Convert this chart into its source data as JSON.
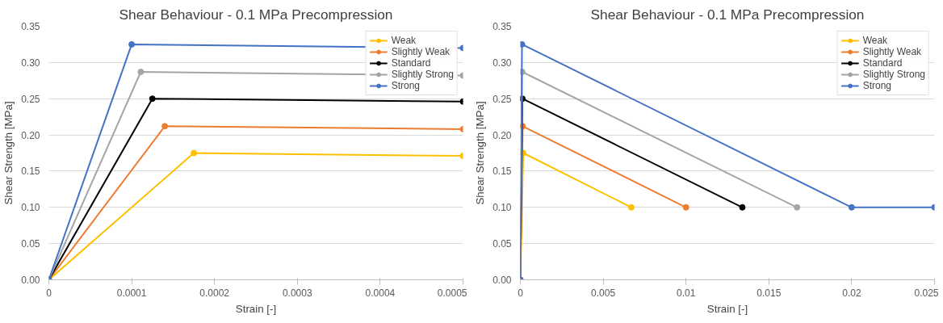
{
  "chart_data": [
    {
      "type": "line",
      "title": "Shear Behaviour - 0.1 MPa Precompression",
      "xlabel": "Strain [-]",
      "ylabel": "Shear Strength [MPa]",
      "xlim": [
        0,
        0.0005
      ],
      "ylim": [
        0,
        0.35
      ],
      "xticks": [
        0,
        0.0001,
        0.0002,
        0.0003,
        0.0004,
        0.0005
      ],
      "yticks": [
        {
          "value": 0,
          "label": "0.00"
        },
        {
          "value": 0.05,
          "label": "0.05"
        },
        {
          "value": 0.1,
          "label": "0.10"
        },
        {
          "value": 0.15,
          "label": "0.15"
        },
        {
          "value": 0.2,
          "label": "0.20"
        },
        {
          "value": 0.25,
          "label": "0.25"
        },
        {
          "value": 0.3,
          "label": "0.30"
        },
        {
          "value": 0.35,
          "label": "0.35"
        }
      ],
      "grid": "y",
      "legend": "top right",
      "marker": "circle",
      "series": [
        {
          "name": "Weak",
          "color": "#ffc000",
          "x": [
            0,
            0.000175,
            0.0005
          ],
          "values": [
            0,
            0.175,
            0.171
          ]
        },
        {
          "name": "Slightly Weak",
          "color": "#ed7d31",
          "x": [
            0,
            0.00014,
            0.0005
          ],
          "values": [
            0,
            0.212,
            0.208
          ]
        },
        {
          "name": "Standard",
          "color": "#000000",
          "x": [
            0,
            0.000125,
            0.0005
          ],
          "values": [
            0,
            0.25,
            0.246
          ]
        },
        {
          "name": "Slightly Strong",
          "color": "#a5a5a5",
          "x": [
            0,
            0.000111,
            0.0005
          ],
          "values": [
            0,
            0.287,
            0.282
          ]
        },
        {
          "name": "Strong",
          "color": "#4472c4",
          "x": [
            0,
            0.0001,
            0.0005
          ],
          "values": [
            0,
            0.325,
            0.32
          ]
        }
      ]
    },
    {
      "type": "line",
      "title": "Shear Behaviour - 0.1 MPa Precompression",
      "xlabel": "Strain [-]",
      "ylabel": "Shear Strength [MPa]",
      "xlim": [
        0,
        0.025
      ],
      "ylim": [
        0,
        0.35
      ],
      "xticks": [
        0,
        0.005,
        0.01,
        0.015,
        0.02,
        0.025
      ],
      "yticks": [
        {
          "value": 0,
          "label": "0.00"
        },
        {
          "value": 0.05,
          "label": "0.05"
        },
        {
          "value": 0.1,
          "label": "0.10"
        },
        {
          "value": 0.15,
          "label": "0.15"
        },
        {
          "value": 0.2,
          "label": "0.20"
        },
        {
          "value": 0.25,
          "label": "0.25"
        },
        {
          "value": 0.3,
          "label": "0.30"
        },
        {
          "value": 0.35,
          "label": "0.35"
        }
      ],
      "grid": "y",
      "legend": "top right",
      "marker": "circle",
      "series": [
        {
          "name": "Weak",
          "color": "#ffc000",
          "x": [
            0,
            0.000175,
            0.0067
          ],
          "values": [
            0,
            0.175,
            0.1
          ]
        },
        {
          "name": "Slightly Weak",
          "color": "#ed7d31",
          "x": [
            0,
            0.00014,
            0.01
          ],
          "values": [
            0,
            0.212,
            0.1
          ]
        },
        {
          "name": "Standard",
          "color": "#000000",
          "x": [
            0,
            0.000125,
            0.0134
          ],
          "values": [
            0,
            0.25,
            0.1
          ]
        },
        {
          "name": "Slightly Strong",
          "color": "#a5a5a5",
          "x": [
            0,
            0.000111,
            0.0167
          ],
          "values": [
            0,
            0.287,
            0.1
          ]
        },
        {
          "name": "Strong",
          "color": "#4472c4",
          "x": [
            0,
            0.0001,
            0.02,
            0.025
          ],
          "values": [
            0,
            0.325,
            0.1,
            0.1
          ]
        }
      ]
    }
  ]
}
